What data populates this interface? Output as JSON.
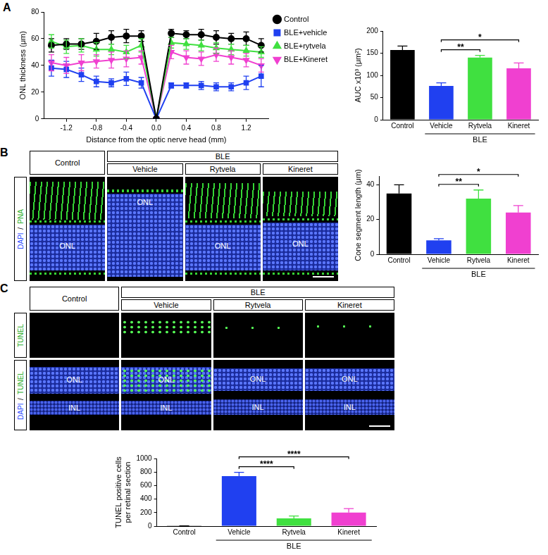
{
  "chart_data": [
    {
      "panel": "A",
      "type": "line",
      "x_label": "Distance from the optic nerve head (mm)",
      "y_label": "ONL thickness (μm)",
      "xlim": [
        -1.5,
        1.5
      ],
      "xticks": [
        -1.2,
        -0.8,
        -0.4,
        {
          "value": 0,
          "label": "0.0"
        },
        0.4,
        0.8,
        1.2
      ],
      "ylim": [
        0,
        80
      ],
      "yticks": [
        0,
        20,
        40,
        60,
        80
      ],
      "grid": false,
      "legend": "right",
      "x": [
        -1.4,
        -1.2,
        -1.0,
        -0.8,
        -0.6,
        -0.4,
        -0.2,
        0,
        0.2,
        0.4,
        0.6,
        0.8,
        1.0,
        1.2,
        1.4
      ],
      "series": [
        {
          "name": "Control",
          "color": "#000000",
          "marker": "circle",
          "values": [
            55,
            56,
            56,
            58,
            61,
            62,
            62,
            0,
            64,
            63,
            63,
            61,
            60,
            60,
            55
          ],
          "errors": [
            5,
            4,
            4,
            6,
            5,
            5,
            4,
            0,
            3,
            3,
            4,
            5,
            4,
            5,
            5
          ]
        },
        {
          "name": "BLE+vehicle",
          "color": "#2040f0",
          "marker": "square",
          "values": [
            38,
            37,
            33,
            28,
            27,
            30,
            27,
            0,
            25,
            25,
            25,
            24,
            24,
            27,
            32
          ],
          "errors": [
            6,
            6,
            5,
            4,
            3,
            5,
            4,
            0,
            2,
            2,
            3,
            3,
            3,
            5,
            8
          ]
        },
        {
          "name": "BLE+rytvela",
          "color": "#40e040",
          "marker": "triangle",
          "values": [
            58,
            54,
            55,
            52,
            52,
            50,
            55,
            0,
            57,
            56,
            55,
            53,
            52,
            51,
            50
          ],
          "errors": [
            5,
            5,
            5,
            5,
            4,
            5,
            5,
            0,
            4,
            4,
            4,
            4,
            4,
            4,
            4
          ]
        },
        {
          "name": "BLE+Kineret",
          "color": "#f040d0",
          "marker": "triangle-down",
          "values": [
            42,
            40,
            42,
            43,
            44,
            45,
            46,
            0,
            50,
            46,
            45,
            48,
            46,
            44,
            40
          ],
          "errors": [
            6,
            6,
            6,
            5,
            6,
            6,
            5,
            0,
            5,
            5,
            5,
            5,
            5,
            5,
            5
          ]
        }
      ]
    },
    {
      "type": "bar",
      "y_label": "AUC x10³ (μm²)",
      "categories": [
        "Control",
        "Vehicle",
        "Rytvela",
        "Kineret"
      ],
      "values": [
        157,
        76,
        140,
        116
      ],
      "errors": [
        9,
        7,
        5,
        12
      ],
      "colors": [
        "#000000",
        "#2040f0",
        "#40e040",
        "#f040d0"
      ],
      "ylim": [
        0,
        200
      ],
      "yticks": [
        0,
        50,
        100,
        150,
        200
      ],
      "grid": false,
      "group": {
        "label": "BLE",
        "categories": [
          "Vehicle",
          "Rytvela",
          "Kineret"
        ]
      },
      "significance": [
        {
          "from": "Vehicle",
          "to": "Rytvela",
          "label": "**"
        },
        {
          "from": "Vehicle",
          "to": "Kineret",
          "label": "*"
        }
      ]
    },
    {
      "type": "bar",
      "y_label": "Cone segment length (μm)",
      "categories": [
        "Control",
        "Vehicle",
        "Rytvela",
        "Kineret"
      ],
      "values": [
        35,
        8,
        32,
        24
      ],
      "errors": [
        5,
        1,
        5,
        4
      ],
      "colors": [
        "#000000",
        "#2040f0",
        "#40e040",
        "#f040d0"
      ],
      "ylim": [
        0,
        45
      ],
      "yticks": [
        0,
        20,
        40
      ],
      "grid": false,
      "group": {
        "label": "BLE",
        "categories": [
          "Vehicle",
          "Rytvela",
          "Kineret"
        ]
      },
      "significance": [
        {
          "from": "Vehicle",
          "to": "Rytvela",
          "label": "**"
        },
        {
          "from": "Vehicle",
          "to": "Kineret",
          "label": "*"
        }
      ]
    },
    {
      "type": "bar",
      "y_label": [
        "TUNEL positive cells",
        "per retinal section"
      ],
      "categories": [
        "Control",
        "Vehicle",
        "Rytvela",
        "Kineret"
      ],
      "values": [
        3,
        740,
        115,
        200
      ],
      "errors": [
        1,
        55,
        35,
        60
      ],
      "colors": [
        "#000000",
        "#2040f0",
        "#40e040",
        "#f040d0"
      ],
      "ylim": [
        0,
        1000
      ],
      "yticks": [
        0,
        200,
        400,
        600,
        800,
        1000
      ],
      "grid": false,
      "group": {
        "label": "BLE",
        "categories": [
          "Vehicle",
          "Rytvela",
          "Kineret"
        ]
      },
      "significance": [
        {
          "from": "Vehicle",
          "to": "Rytvela",
          "label": "****"
        },
        {
          "from": "Vehicle",
          "to": "Kineret",
          "label": "****"
        }
      ]
    }
  ],
  "image_panels": [
    {
      "panel": "B",
      "columns": [
        "Control",
        "Vehicle",
        "Rytvela",
        "Kineret"
      ],
      "group": {
        "label": "BLE",
        "columns": [
          "Vehicle",
          "Rytvela",
          "Kineret"
        ]
      },
      "rows": [
        {
          "label": [
            {
              "text": "DAPI",
              "color": "#3050ff"
            },
            {
              "text": "/",
              "color": "#000000"
            },
            {
              "text": "PNA",
              "color": "#30b030"
            }
          ],
          "layer_labels": [
            [
              "ONL"
            ],
            [
              "ONL"
            ],
            [
              "ONL"
            ],
            [
              "ONL"
            ]
          ]
        }
      ]
    },
    {
      "panel": "C",
      "columns": [
        "Control",
        "Vehicle",
        "Rytvela",
        "Kineret"
      ],
      "group": {
        "label": "BLE",
        "columns": [
          "Vehicle",
          "Rytvela",
          "Kineret"
        ]
      },
      "rows": [
        {
          "label": [
            {
              "text": "TUNEL",
              "color": "#30b030"
            }
          ],
          "layer_labels": [
            [],
            [],
            [],
            []
          ]
        },
        {
          "label": [
            {
              "text": "DAPI",
              "color": "#3050ff"
            },
            {
              "text": "/",
              "color": "#000000"
            },
            {
              "text": "TUNEL",
              "color": "#30b030"
            }
          ],
          "layer_labels": [
            [
              "ONL",
              "INL"
            ],
            [
              "ONL",
              "INL"
            ],
            [
              "ONL",
              "INL"
            ],
            [
              "ONL",
              "INL"
            ]
          ]
        }
      ]
    }
  ]
}
